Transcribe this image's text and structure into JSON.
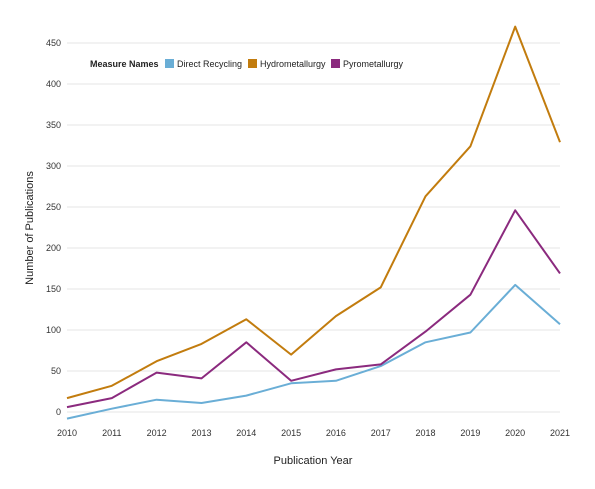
{
  "chart_data": {
    "type": "line",
    "xlabel": "Publication Year",
    "ylabel": "Number of Publications",
    "x": [
      2010,
      2011,
      2012,
      2013,
      2014,
      2015,
      2016,
      2017,
      2018,
      2019,
      2020,
      2021
    ],
    "ylim": [
      -10,
      470
    ],
    "yticks": [
      0,
      50,
      100,
      150,
      200,
      250,
      300,
      350,
      400,
      450
    ],
    "grid": true,
    "legend": {
      "title": "Measure Names",
      "placement": "top-left"
    },
    "series": [
      {
        "name": "Direct Recycling",
        "color": "#6aaed6",
        "values": [
          -8,
          4,
          15,
          11,
          20,
          35,
          38,
          56,
          85,
          97,
          155,
          107
        ]
      },
      {
        "name": "Hydrometallurgy",
        "color": "#c27c0e",
        "values": [
          17,
          32,
          62,
          83,
          113,
          70,
          117,
          152,
          263,
          324,
          470,
          329
        ]
      },
      {
        "name": "Pyrometallurgy",
        "color": "#8b2a7e",
        "values": [
          6,
          17,
          48,
          41,
          85,
          38,
          52,
          58,
          98,
          143,
          246,
          169
        ]
      }
    ]
  }
}
